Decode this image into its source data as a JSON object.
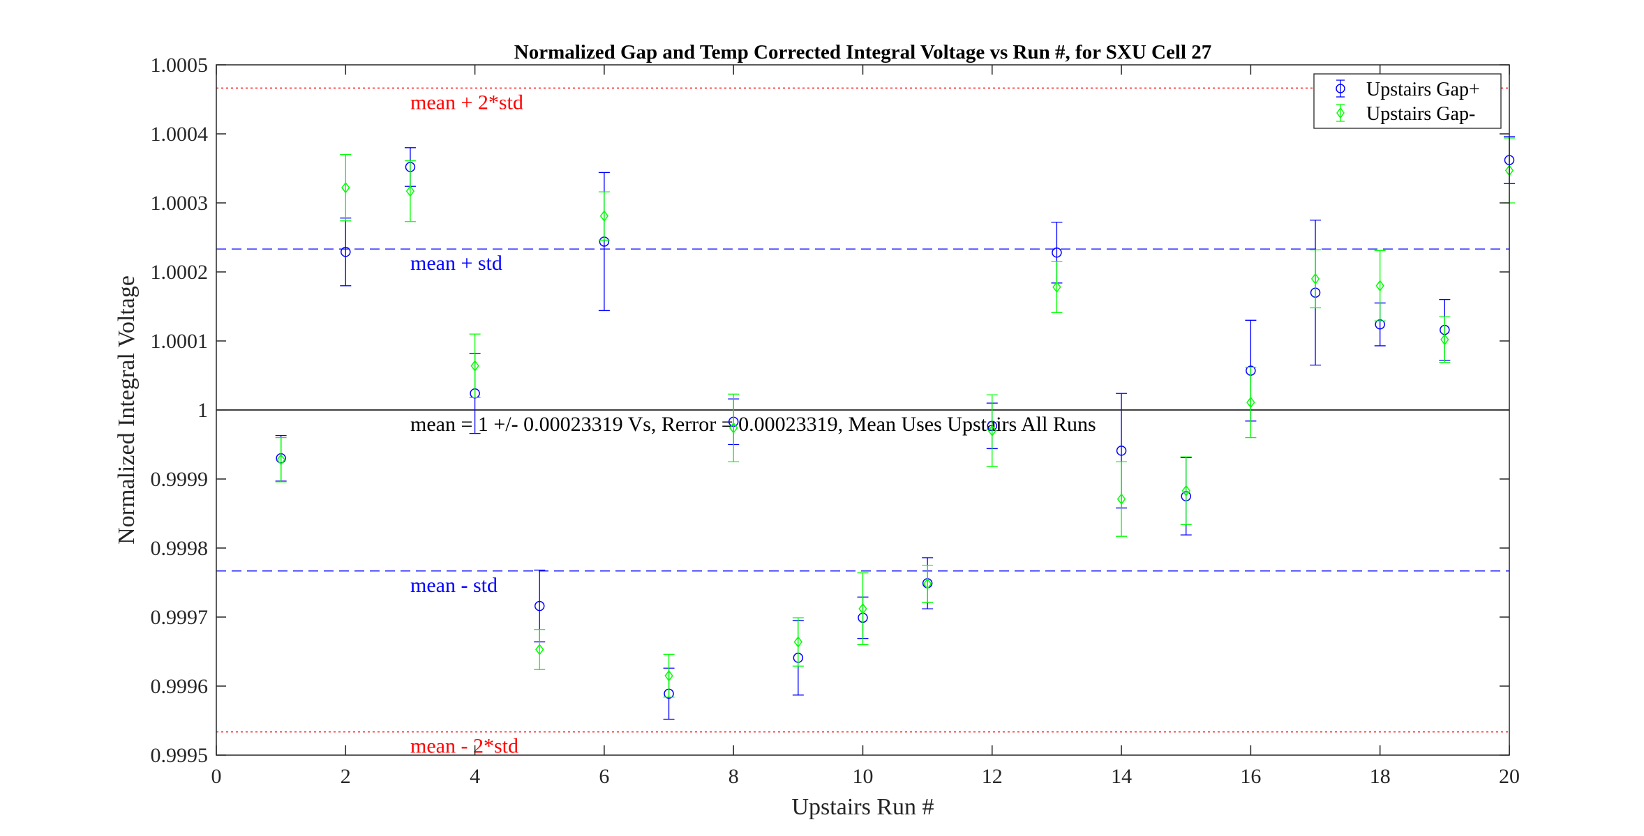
{
  "chart_data": {
    "type": "scatter",
    "title": "Normalized Gap and Temp Corrected Integral Voltage vs Run #, for SXU Cell 27",
    "xlabel": "Upstairs Run #",
    "ylabel": "Normalized Integral Voltage",
    "xlim": [
      0,
      20
    ],
    "ylim": [
      0.9995,
      1.0005
    ],
    "x_ticks": [
      "0",
      "2",
      "4",
      "6",
      "8",
      "10",
      "12",
      "14",
      "16",
      "18",
      "20"
    ],
    "y_ticks": [
      "0.9995",
      "0.9996",
      "0.9997",
      "0.9998",
      "0.9999",
      "1",
      "1.0001",
      "1.0002",
      "1.0003",
      "1.0004",
      "1.0005"
    ],
    "grid": false,
    "legend_position": "top-right",
    "series": [
      {
        "name": "Upstairs Gap+",
        "color": "#0000ff",
        "marker": "circle",
        "x": [
          1,
          2,
          3,
          4,
          5,
          6,
          7,
          8,
          9,
          10,
          11,
          12,
          13,
          14,
          15,
          16,
          17,
          18,
          19,
          20
        ],
        "y": [
          0.99993,
          1.000229,
          1.000352,
          1.000024,
          0.999716,
          1.000244,
          0.999589,
          0.999983,
          0.999641,
          0.999699,
          0.999749,
          0.999977,
          1.000228,
          0.999941,
          0.999875,
          1.000057,
          1.00017,
          1.000124,
          1.000116,
          1.000362
        ],
        "err": [
          3.3e-05,
          4.9e-05,
          2.8e-05,
          5.8e-05,
          5.2e-05,
          0.0001,
          3.7e-05,
          3.3e-05,
          5.4e-05,
          3e-05,
          3.7e-05,
          3.3e-05,
          4.4e-05,
          8.3e-05,
          5.6e-05,
          7.3e-05,
          0.000105,
          3.1e-05,
          4.4e-05,
          3.4e-05
        ]
      },
      {
        "name": "Upstairs Gap-",
        "color": "#00ff00",
        "marker": "diamond",
        "x": [
          1,
          2,
          3,
          4,
          5,
          6,
          7,
          8,
          9,
          10,
          11,
          12,
          13,
          14,
          15,
          16,
          17,
          18,
          19,
          20
        ],
        "y": [
          0.999928,
          1.000322,
          1.000317,
          1.000064,
          0.999653,
          1.000281,
          0.999615,
          0.999974,
          0.999664,
          0.999712,
          0.999748,
          0.99997,
          1.000178,
          0.999871,
          0.999883,
          1.000011,
          1.00019,
          1.00018,
          1.000102,
          1.000347
        ],
        "err": [
          3.2e-05,
          4.8e-05,
          4.4e-05,
          4.6e-05,
          2.9e-05,
          3.5e-05,
          3.1e-05,
          4.9e-05,
          3.5e-05,
          5.2e-05,
          2.7e-05,
          5.2e-05,
          3.7e-05,
          5.4e-05,
          4.9e-05,
          5.1e-05,
          4.2e-05,
          5.1e-05,
          3.3e-05,
          4.7e-05
        ]
      }
    ],
    "reference_lines": [
      {
        "y": 1.00046638,
        "color": "#ff0000",
        "style": "dotted",
        "label": "mean + 2*std"
      },
      {
        "y": 1.00023319,
        "color": "#0000ff",
        "style": "dashed",
        "label": "mean + std"
      },
      {
        "y": 1.0,
        "color": "#000000",
        "style": "solid",
        "label": "mean = 1 +/- 0.00023319 Vs, Rerror = 0.00023319, Mean Uses Upstairs All Runs"
      },
      {
        "y": 0.99976681,
        "color": "#0000ff",
        "style": "dashed",
        "label": "mean - std"
      },
      {
        "y": 0.99953362,
        "color": "#ff0000",
        "style": "dotted",
        "label": "mean - 2*std"
      }
    ]
  }
}
